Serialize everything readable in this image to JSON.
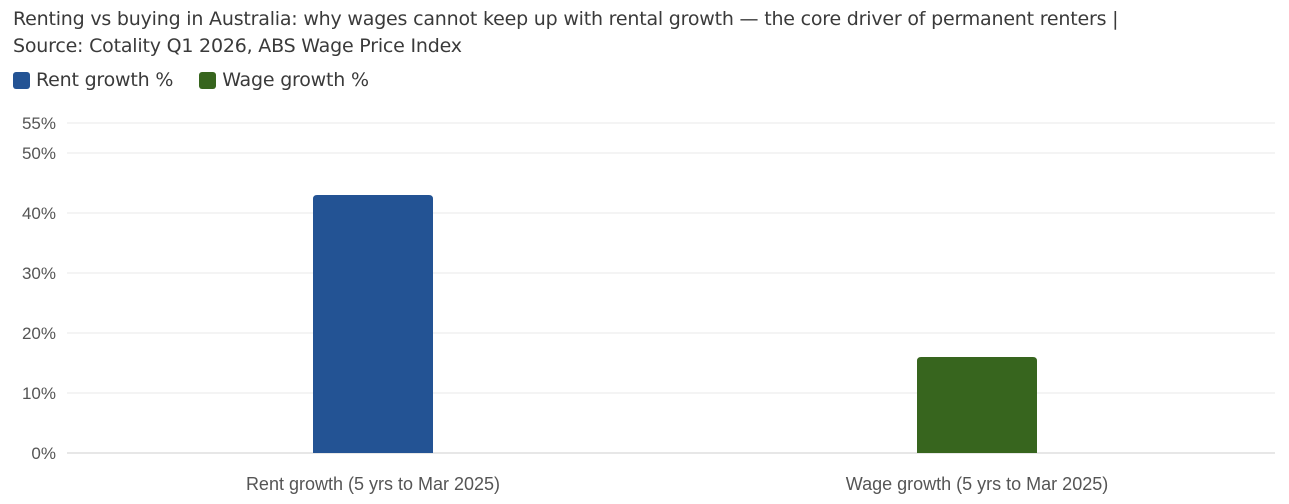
{
  "title_line1": "Renting vs buying in Australia: why wages cannot keep up with rental growth — the core driver of permanent renters |",
  "title_line2": "Source: Cotality Q1 2026, ABS Wage Price Index",
  "chart_data": {
    "type": "bar",
    "categories": [
      "Rent growth (5 yrs to Mar 2025)",
      "Wage growth (5 yrs to Mar 2025)"
    ],
    "series": [
      {
        "name": "Rent growth %",
        "color": "#235394",
        "values": [
          43,
          null
        ]
      },
      {
        "name": "Wage growth %",
        "color": "#37651e",
        "values": [
          null,
          16
        ]
      }
    ],
    "yticks": [
      0,
      10,
      20,
      30,
      40,
      50,
      55
    ],
    "ytick_labels": [
      "0%",
      "10%",
      "20%",
      "30%",
      "40%",
      "50%",
      "55%"
    ],
    "ylim": [
      0,
      55
    ],
    "grid": true,
    "legend_position": "top-left"
  }
}
